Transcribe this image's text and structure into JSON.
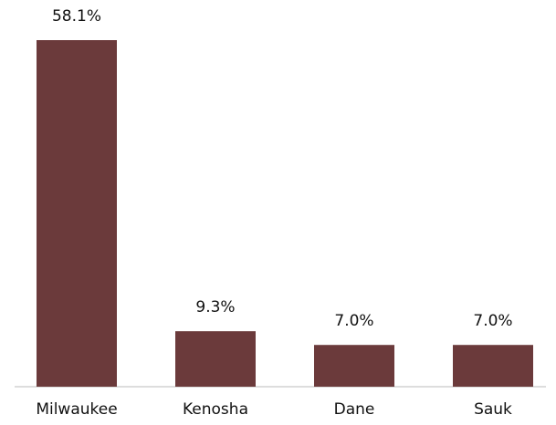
{
  "chart_data": {
    "type": "bar",
    "categories": [
      "Milwaukee",
      "Kenosha",
      "Dane",
      "Sauk"
    ],
    "values": [
      58.1,
      9.3,
      7.0,
      7.0
    ],
    "value_labels": [
      "58.1%",
      "9.3%",
      "7.0%",
      "7.0%"
    ],
    "color": "#6b3a3b"
  }
}
